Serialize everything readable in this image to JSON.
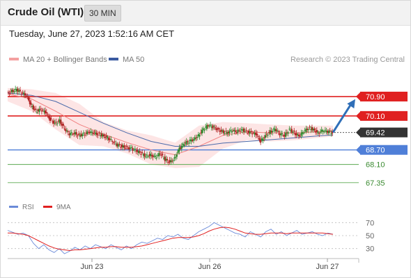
{
  "header": {
    "title": "Crude Oil (WTI)",
    "timeframe": "30 MIN",
    "timestamp": "Tuesday, June 27, 2023 1:52:16 AM CET"
  },
  "legend": {
    "ma20_label": "MA 20 + Bollinger Bands",
    "ma50_label": "MA 50",
    "credit": "Research © 2023 Trading Central"
  },
  "rsi_legend": {
    "rsi_label": "RSI",
    "ma_label": "9MA"
  },
  "colors": {
    "ma20": "#f08080",
    "band_fill": "#fde0e0",
    "ma50": "#4a6aaa",
    "resistance": "#e02020",
    "support_blue": "#4f7fd8",
    "support_green": "#5aaa50",
    "current_tag": "#333333",
    "arrow": "#2f6fb8",
    "candle_up": "#2e8b2e",
    "candle_down": "#b02020",
    "rsi": "#6a8ad8",
    "rsi_ma": "#e02020"
  },
  "chart_data": [
    {
      "type": "candlestick",
      "title": "Crude Oil (WTI)",
      "interval": "30 MIN",
      "ylim": [
        67.0,
        71.5
      ],
      "x_ticks": [
        "Jun 23",
        "Jun 26",
        "Jun 27"
      ],
      "overlays": [
        "MA 20 + Bollinger Bands",
        "MA 50"
      ],
      "levels": [
        {
          "value": 70.9,
          "label": "70.90",
          "kind": "resistance"
        },
        {
          "value": 70.1,
          "label": "70.10",
          "kind": "resistance"
        },
        {
          "value": 69.42,
          "label": "69.42",
          "kind": "current"
        },
        {
          "value": 68.7,
          "label": "68.70",
          "kind": "support"
        },
        {
          "value": 68.1,
          "label": "68.10",
          "kind": "support"
        },
        {
          "value": 67.35,
          "label": "67.35",
          "kind": "support"
        }
      ],
      "close_points": [
        {
          "x": 0,
          "y": 71.05
        },
        {
          "x": 2,
          "y": 71.12
        },
        {
          "x": 4,
          "y": 71.18
        },
        {
          "x": 6,
          "y": 71.05
        },
        {
          "x": 8,
          "y": 70.95
        },
        {
          "x": 10,
          "y": 70.55
        },
        {
          "x": 12,
          "y": 70.3
        },
        {
          "x": 14,
          "y": 70.35
        },
        {
          "x": 16,
          "y": 70.25
        },
        {
          "x": 18,
          "y": 69.95
        },
        {
          "x": 20,
          "y": 69.8
        },
        {
          "x": 22,
          "y": 69.9
        },
        {
          "x": 24,
          "y": 69.55
        },
        {
          "x": 26,
          "y": 69.35
        },
        {
          "x": 28,
          "y": 69.4
        },
        {
          "x": 30,
          "y": 69.3
        },
        {
          "x": 32,
          "y": 69.35
        },
        {
          "x": 34,
          "y": 69.42
        },
        {
          "x": 36,
          "y": 69.4
        },
        {
          "x": 38,
          "y": 69.35
        },
        {
          "x": 40,
          "y": 69.3
        },
        {
          "x": 42,
          "y": 69.2
        },
        {
          "x": 44,
          "y": 69.05
        },
        {
          "x": 46,
          "y": 68.9
        },
        {
          "x": 48,
          "y": 68.85
        },
        {
          "x": 50,
          "y": 68.8
        },
        {
          "x": 52,
          "y": 68.75
        },
        {
          "x": 54,
          "y": 68.65
        },
        {
          "x": 56,
          "y": 68.55
        },
        {
          "x": 58,
          "y": 68.45
        },
        {
          "x": 60,
          "y": 68.5
        },
        {
          "x": 62,
          "y": 68.4
        },
        {
          "x": 64,
          "y": 68.55
        },
        {
          "x": 66,
          "y": 68.3
        },
        {
          "x": 68,
          "y": 68.2
        },
        {
          "x": 70,
          "y": 68.35
        },
        {
          "x": 72,
          "y": 68.75
        },
        {
          "x": 74,
          "y": 68.95
        },
        {
          "x": 76,
          "y": 69.05
        },
        {
          "x": 78,
          "y": 69.15
        },
        {
          "x": 80,
          "y": 69.3
        },
        {
          "x": 82,
          "y": 69.55
        },
        {
          "x": 84,
          "y": 69.7
        },
        {
          "x": 86,
          "y": 69.65
        },
        {
          "x": 88,
          "y": 69.55
        },
        {
          "x": 90,
          "y": 69.45
        },
        {
          "x": 92,
          "y": 69.4
        },
        {
          "x": 94,
          "y": 69.5
        },
        {
          "x": 96,
          "y": 69.45
        },
        {
          "x": 98,
          "y": 69.55
        },
        {
          "x": 100,
          "y": 69.45
        },
        {
          "x": 102,
          "y": 69.4
        },
        {
          "x": 104,
          "y": 69.35
        },
        {
          "x": 106,
          "y": 69.05
        },
        {
          "x": 108,
          "y": 69.3
        },
        {
          "x": 110,
          "y": 69.45
        },
        {
          "x": 112,
          "y": 69.55
        },
        {
          "x": 114,
          "y": 69.35
        },
        {
          "x": 116,
          "y": 69.3
        },
        {
          "x": 118,
          "y": 69.55
        },
        {
          "x": 120,
          "y": 69.4
        },
        {
          "x": 122,
          "y": 69.25
        },
        {
          "x": 124,
          "y": 69.45
        },
        {
          "x": 126,
          "y": 69.6
        },
        {
          "x": 128,
          "y": 69.55
        },
        {
          "x": 130,
          "y": 69.4
        },
        {
          "x": 132,
          "y": 69.5
        },
        {
          "x": 134,
          "y": 69.45
        },
        {
          "x": 136,
          "y": 69.42
        }
      ],
      "ma50": [
        {
          "x": 0,
          "y": 71.05
        },
        {
          "x": 10,
          "y": 70.95
        },
        {
          "x": 20,
          "y": 70.7
        },
        {
          "x": 30,
          "y": 70.25
        },
        {
          "x": 40,
          "y": 69.8
        },
        {
          "x": 50,
          "y": 69.4
        },
        {
          "x": 60,
          "y": 69.05
        },
        {
          "x": 70,
          "y": 68.85
        },
        {
          "x": 80,
          "y": 68.85
        },
        {
          "x": 90,
          "y": 68.98
        },
        {
          "x": 100,
          "y": 69.05
        },
        {
          "x": 110,
          "y": 69.12
        },
        {
          "x": 120,
          "y": 69.2
        },
        {
          "x": 130,
          "y": 69.28
        },
        {
          "x": 136,
          "y": 69.32
        }
      ],
      "ma20": [
        {
          "x": 0,
          "y": 71.0
        },
        {
          "x": 10,
          "y": 70.8
        },
        {
          "x": 20,
          "y": 70.3
        },
        {
          "x": 30,
          "y": 69.75
        },
        {
          "x": 40,
          "y": 69.35
        },
        {
          "x": 50,
          "y": 69.0
        },
        {
          "x": 60,
          "y": 68.7
        },
        {
          "x": 70,
          "y": 68.5
        },
        {
          "x": 80,
          "y": 68.85
        },
        {
          "x": 90,
          "y": 69.3
        },
        {
          "x": 100,
          "y": 69.45
        },
        {
          "x": 110,
          "y": 69.4
        },
        {
          "x": 120,
          "y": 69.4
        },
        {
          "x": 130,
          "y": 69.45
        },
        {
          "x": 136,
          "y": 69.45
        }
      ],
      "band_upper": [
        {
          "x": 0,
          "y": 71.25
        },
        {
          "x": 10,
          "y": 71.2
        },
        {
          "x": 20,
          "y": 71.05
        },
        {
          "x": 30,
          "y": 70.6
        },
        {
          "x": 40,
          "y": 69.85
        },
        {
          "x": 50,
          "y": 69.5
        },
        {
          "x": 60,
          "y": 69.3
        },
        {
          "x": 70,
          "y": 69.0
        },
        {
          "x": 80,
          "y": 69.7
        },
        {
          "x": 90,
          "y": 69.85
        },
        {
          "x": 100,
          "y": 69.8
        },
        {
          "x": 110,
          "y": 69.75
        },
        {
          "x": 120,
          "y": 69.7
        },
        {
          "x": 130,
          "y": 69.7
        },
        {
          "x": 136,
          "y": 69.7
        }
      ],
      "band_lower": [
        {
          "x": 0,
          "y": 70.7
        },
        {
          "x": 10,
          "y": 70.3
        },
        {
          "x": 20,
          "y": 69.55
        },
        {
          "x": 30,
          "y": 68.9
        },
        {
          "x": 40,
          "y": 68.85
        },
        {
          "x": 50,
          "y": 68.55
        },
        {
          "x": 60,
          "y": 68.1
        },
        {
          "x": 70,
          "y": 67.95
        },
        {
          "x": 80,
          "y": 68.0
        },
        {
          "x": 90,
          "y": 68.75
        },
        {
          "x": 100,
          "y": 69.1
        },
        {
          "x": 110,
          "y": 69.05
        },
        {
          "x": 120,
          "y": 69.1
        },
        {
          "x": 130,
          "y": 69.2
        },
        {
          "x": 136,
          "y": 69.25
        }
      ],
      "projection": {
        "from": {
          "x": 136,
          "y": 69.42
        },
        "to": {
          "x": 150,
          "y": 70.85
        }
      }
    },
    {
      "type": "line",
      "title": "RSI",
      "ylim": [
        20,
        80
      ],
      "y_ticks": [
        70,
        50,
        30
      ],
      "series": [
        {
          "name": "RSI",
          "values": [
            58,
            55,
            52,
            54,
            50,
            38,
            30,
            36,
            28,
            24,
            30,
            22,
            26,
            32,
            28,
            34,
            30,
            36,
            33,
            30,
            36,
            32,
            28,
            34,
            30,
            36,
            40,
            38,
            42,
            46,
            44,
            50,
            48,
            52,
            46,
            44,
            50,
            56,
            60,
            64,
            70,
            66,
            62,
            58,
            54,
            52,
            48,
            56,
            52,
            48,
            56,
            60,
            52,
            56,
            50,
            54,
            58,
            52,
            54,
            56,
            52,
            50,
            54,
            52
          ]
        },
        {
          "name": "9MA",
          "values": [
            54,
            54,
            53,
            52,
            50,
            46,
            42,
            38,
            34,
            31,
            29,
            28,
            27,
            28,
            28,
            29,
            30,
            31,
            32,
            32,
            33,
            33,
            32,
            32,
            32,
            33,
            34,
            36,
            38,
            40,
            42,
            44,
            46,
            47,
            47,
            47,
            48,
            50,
            53,
            57,
            60,
            62,
            63,
            62,
            60,
            57,
            54,
            53,
            52,
            52,
            53,
            54,
            54,
            54,
            53,
            54,
            54,
            54,
            54,
            54,
            54,
            54,
            53,
            52
          ]
        }
      ]
    }
  ]
}
